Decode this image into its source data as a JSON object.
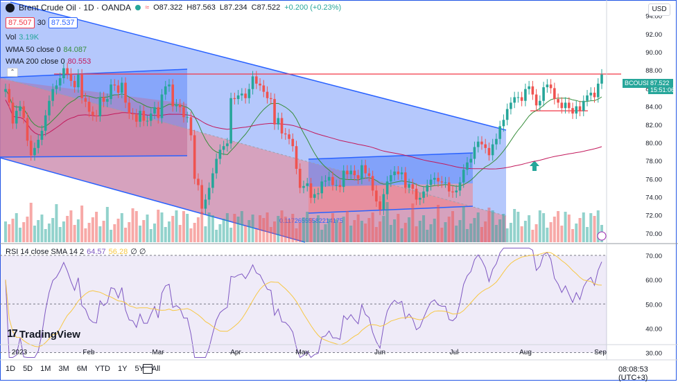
{
  "header": {
    "symbol_title": "Brent Crude Oil · 1D · OANDA",
    "open": "O87.322",
    "high": "H87.563",
    "low": "L87.234",
    "close": "C87.522",
    "change": "+0.200 (+0.23%)",
    "sell_price": "87.507",
    "spread": "30",
    "buy_price": "87.537",
    "currency": "USD",
    "collapse_glyph": "⌃",
    "wave_glyph": "≈"
  },
  "legend": {
    "vol_label": "Vol",
    "vol_value": "3.19K",
    "wma50_label": "WMA 50 close 0",
    "wma50_value": "84.087",
    "wma200_label": "WMA 200 close 0",
    "wma200_value": "80.553"
  },
  "rsi_legend": {
    "label": "RSI 14 close SMA 14 2",
    "rsi_value": "64.57",
    "sma_value": "56.28",
    "extra": "∅ ∅"
  },
  "annotation": "0.11726555582214175",
  "symbol_badge": "BCOUSD",
  "price_tag_value": "87.522",
  "price_tag_time": "15:51:06",
  "logo_text": "TradingView",
  "logo_mark": "17",
  "ranges": [
    "1D",
    "5D",
    "1M",
    "3M",
    "6M",
    "YTD",
    "1Y",
    "5Y",
    "All"
  ],
  "clock": "08:08:53 (UTC+3)",
  "colors": {
    "up": "#26a69a",
    "down": "#ef5350",
    "blue_fill": "#4f7cf7",
    "red_fill": "#f77c80",
    "wma50": "#388e3c",
    "wma200": "#c2185b",
    "rsi": "#7e57c2",
    "rsi_sma": "#f7c744",
    "resistance": "#f23645"
  },
  "chart_data": {
    "type": "candlestick",
    "price_axis": {
      "ticks": [
        70,
        72,
        74,
        76,
        78,
        80,
        82,
        84,
        86,
        88,
        90,
        92,
        94
      ],
      "range": [
        69,
        95.5
      ]
    },
    "x_axis_labels": [
      "2023",
      "Feb",
      "Mar",
      "Apr",
      "May",
      "Jun",
      "Jul",
      "Aug",
      "Sep"
    ],
    "rsi_axis": {
      "ticks": [
        30,
        40,
        50,
        60,
        70
      ],
      "range": [
        27,
        74
      ]
    },
    "close": [
      85.9,
      84.4,
      82.1,
      83.5,
      84.0,
      82.7,
      80.2,
      78.6,
      79.4,
      80.3,
      81.3,
      83.0,
      84.6,
      85.9,
      86.3,
      87.1,
      88.2,
      87.6,
      86.8,
      86.1,
      87.5,
      84.9,
      84.5,
      83.4,
      83.0,
      82.9,
      85.0,
      84.5,
      84.8,
      86.4,
      86.3,
      85.5,
      86.6,
      84.4,
      83.2,
      83.1,
      82.3,
      83.5,
      82.4,
      82.4,
      83.2,
      83.9,
      82.7,
      85.3,
      86.2,
      86.4,
      84.0,
      84.2,
      83.9,
      82.8,
      82.8,
      80.8,
      76.0,
      75.3,
      72.7,
      73.7,
      75.0,
      76.6,
      78.2,
      79.2,
      79.6,
      79.9,
      84.9,
      84.8,
      85.2,
      85.4,
      84.9,
      85.9,
      87.3,
      86.5,
      86.3,
      85.6,
      84.9,
      84.8,
      82.0,
      82.7,
      81.0,
      80.9,
      80.4,
      79.6,
      77.1,
      75.0,
      75.2,
      75.5,
      73.9,
      74.3,
      74.4,
      75.7,
      75.8,
      76.2,
      75.3,
      75.3,
      75.1,
      76.9,
      76.5,
      76.9,
      76.4,
      76.0,
      77.5,
      76.6,
      76.3,
      74.7,
      73.5,
      72.6,
      74.3,
      75.7,
      76.4,
      76.8,
      76.5,
      76.7,
      75.0,
      75.4,
      74.9,
      73.7,
      73.9,
      74.6,
      75.3,
      75.9,
      76.1,
      75.7,
      75.6,
      75.6,
      74.6,
      74.5,
      74.7,
      75.6,
      77.0,
      77.8,
      78.2,
      79.5,
      80.1,
      79.8,
      79.4,
      78.6,
      79.8,
      80.4,
      81.8,
      82.5,
      83.7,
      84.4,
      85.0,
      85.0,
      84.6,
      85.9,
      86.2,
      85.3,
      84.1,
      84.6,
      86.1,
      86.4,
      86.0,
      84.8,
      84.4,
      83.8,
      84.4,
      83.8,
      83.2,
      84.0,
      83.5,
      84.6,
      85.2,
      85.5,
      85.0,
      86.5,
      87.5
    ],
    "wma50_end": 84.087,
    "wma200_end": 80.553,
    "resistance_level": 87.56,
    "support_level": 83.5,
    "rsi_end": 64.57,
    "rsi_sma_end": 56.28
  }
}
